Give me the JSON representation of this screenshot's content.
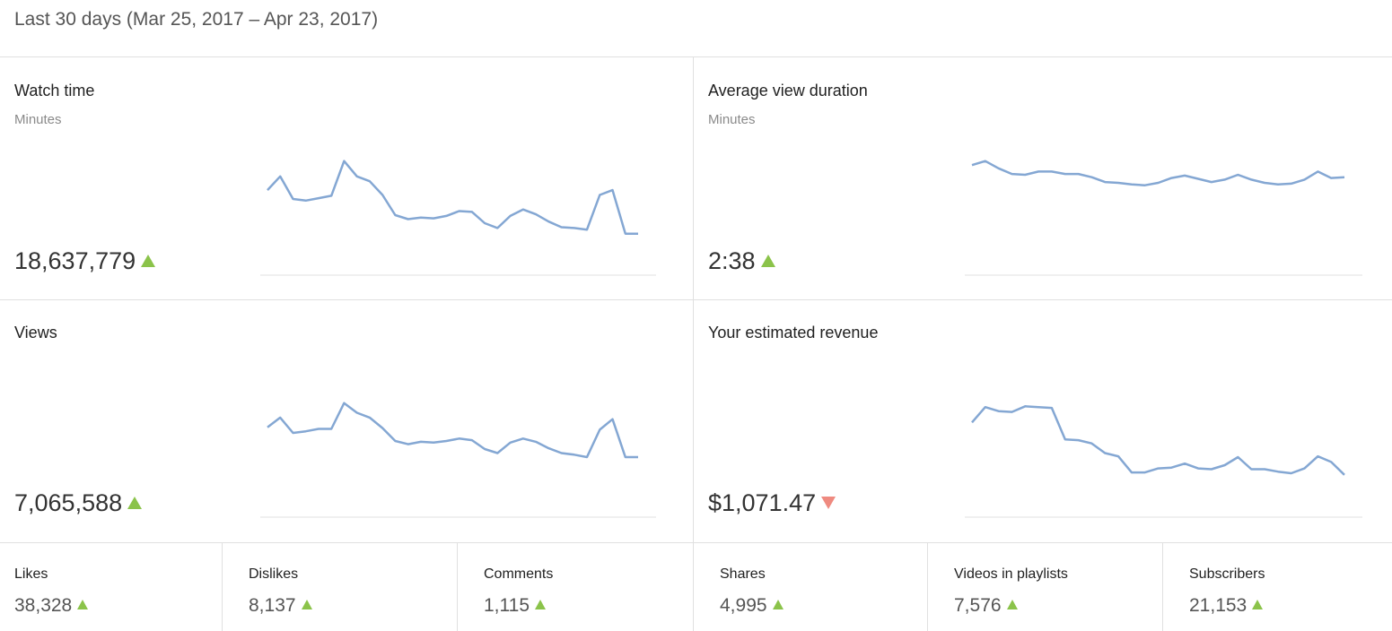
{
  "header": {
    "title": "Last 30 days (Mar 25, 2017 – Apr 23, 2017)"
  },
  "colors": {
    "line": "#84a7d3",
    "up": "#8bc34a",
    "down": "#ef8a80",
    "grid": "#e0e0e0"
  },
  "cards": {
    "watch_time": {
      "label": "Watch time",
      "unit": "Minutes",
      "value": "18,637,779",
      "trend": "up"
    },
    "avg_view_duration": {
      "label": "Average view duration",
      "unit": "Minutes",
      "value": "2:38",
      "trend": "up"
    },
    "views": {
      "label": "Views",
      "value": "7,065,588",
      "trend": "up"
    },
    "revenue": {
      "label": "Your estimated revenue",
      "value": "$1,071.47",
      "trend": "down"
    }
  },
  "stats": {
    "likes": {
      "label": "Likes",
      "value": "38,328",
      "trend": "up"
    },
    "dislikes": {
      "label": "Dislikes",
      "value": "8,137",
      "trend": "up"
    },
    "comments": {
      "label": "Comments",
      "value": "1,115",
      "trend": "up"
    },
    "shares": {
      "label": "Shares",
      "value": "4,995",
      "trend": "up"
    },
    "playlists": {
      "label": "Videos in playlists",
      "value": "7,576",
      "trend": "up"
    },
    "subscribers": {
      "label": "Subscribers",
      "value": "21,153",
      "trend": "up"
    }
  },
  "chart_data": [
    {
      "type": "line",
      "name": "watch_time",
      "x": [
        1,
        2,
        3,
        4,
        5,
        6,
        7,
        8,
        9,
        10,
        11,
        12,
        13,
        14,
        15,
        16,
        17,
        18,
        19,
        20,
        21,
        22,
        23,
        24,
        25,
        26,
        27,
        28,
        29,
        30
      ],
      "values": [
        0.61,
        0.78,
        0.5,
        0.48,
        0.51,
        0.54,
        0.97,
        0.78,
        0.72,
        0.55,
        0.3,
        0.25,
        0.27,
        0.26,
        0.29,
        0.35,
        0.34,
        0.2,
        0.14,
        0.29,
        0.37,
        0.31,
        0.22,
        0.15,
        0.14,
        0.12,
        0.55,
        0.61,
        0.07,
        0.07
      ]
    },
    {
      "type": "line",
      "name": "avg_view_duration",
      "x": [
        1,
        2,
        3,
        4,
        5,
        6,
        7,
        8,
        9,
        10,
        11,
        12,
        13,
        14,
        15,
        16,
        17,
        18,
        19,
        20,
        21,
        22,
        23,
        24,
        25,
        26,
        27,
        28,
        29
      ],
      "values": [
        0.92,
        0.97,
        0.88,
        0.81,
        0.8,
        0.84,
        0.84,
        0.81,
        0.81,
        0.77,
        0.71,
        0.7,
        0.68,
        0.67,
        0.7,
        0.76,
        0.79,
        0.75,
        0.71,
        0.74,
        0.8,
        0.74,
        0.7,
        0.68,
        0.69,
        0.74,
        0.84,
        0.76,
        0.77
      ]
    },
    {
      "type": "line",
      "name": "views",
      "x": [
        1,
        2,
        3,
        4,
        5,
        6,
        7,
        8,
        9,
        10,
        11,
        12,
        13,
        14,
        15,
        16,
        17,
        18,
        19,
        20,
        21,
        22,
        23,
        24,
        25,
        26,
        27,
        28,
        29,
        30
      ],
      "values": [
        0.67,
        0.79,
        0.6,
        0.62,
        0.65,
        0.65,
        0.97,
        0.85,
        0.79,
        0.66,
        0.5,
        0.46,
        0.49,
        0.48,
        0.5,
        0.53,
        0.51,
        0.4,
        0.35,
        0.48,
        0.53,
        0.49,
        0.41,
        0.35,
        0.33,
        0.3,
        0.64,
        0.77,
        0.3,
        0.3
      ]
    },
    {
      "type": "line",
      "name": "revenue",
      "x": [
        1,
        2,
        3,
        4,
        5,
        6,
        7,
        8,
        9,
        10,
        11,
        12,
        13,
        14,
        15,
        16,
        17,
        18,
        19,
        20,
        21,
        22,
        23,
        24,
        25,
        26,
        27,
        28,
        29
      ],
      "values": [
        0.73,
        0.92,
        0.87,
        0.86,
        0.93,
        0.92,
        0.91,
        0.52,
        0.51,
        0.47,
        0.35,
        0.31,
        0.11,
        0.11,
        0.16,
        0.17,
        0.22,
        0.16,
        0.15,
        0.2,
        0.3,
        0.15,
        0.15,
        0.12,
        0.1,
        0.16,
        0.31,
        0.24,
        0.08
      ]
    }
  ]
}
